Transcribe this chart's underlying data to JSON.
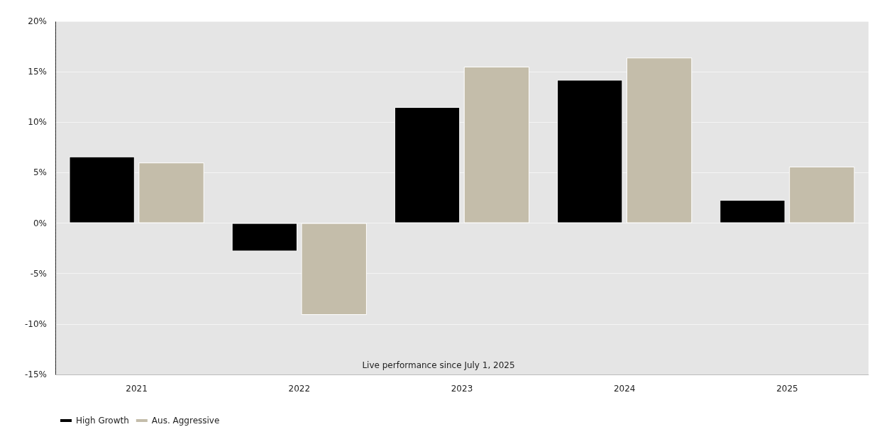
{
  "chart_data": {
    "type": "bar",
    "categories": [
      "2021",
      "2022",
      "2023",
      "2024",
      "2025"
    ],
    "series": [
      {
        "name": "High Growth",
        "color": "#000000",
        "values": [
          6.6,
          -2.8,
          11.5,
          14.2,
          2.3
        ]
      },
      {
        "name": "Aus. Aggressive",
        "color": "#c4bdaa",
        "values": [
          6.0,
          -9.1,
          15.5,
          16.4,
          5.6
        ]
      }
    ],
    "ylim": [
      -15,
      20
    ],
    "yticks": [
      {
        "value": -15,
        "label": "-15%"
      },
      {
        "value": -10,
        "label": "-10%"
      },
      {
        "value": -5,
        "label": "-5%"
      },
      {
        "value": 0,
        "label": "0%"
      },
      {
        "value": 5,
        "label": "5%"
      },
      {
        "value": 10,
        "label": "10%"
      },
      {
        "value": 15,
        "label": "15%"
      },
      {
        "value": 20,
        "label": "20%"
      }
    ],
    "grid": "y",
    "legend": "bottom left",
    "annotations": [
      "Live performance since July 1, 2025"
    ]
  }
}
